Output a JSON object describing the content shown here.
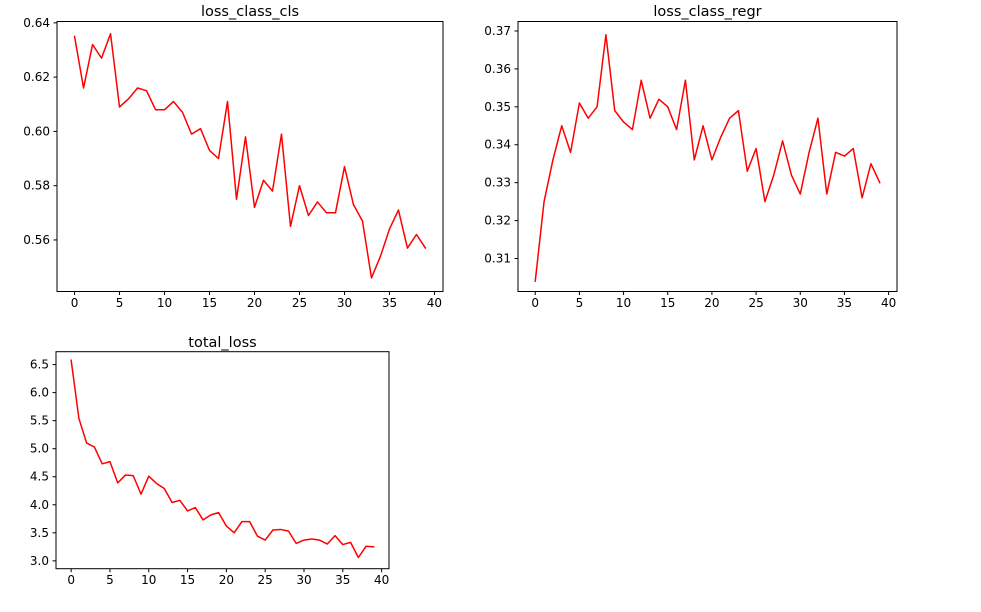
{
  "figure": {
    "background_color": "#ffffff",
    "text_color": "#000000",
    "frame_color": "#000000"
  },
  "chart_data": [
    {
      "type": "line",
      "title": "loss_class_cls",
      "series_name": "loss_class_cls",
      "series_color": "#ff0000",
      "x_start": 0,
      "x_step": 1,
      "values": [
        0.635,
        0.616,
        0.632,
        0.627,
        0.636,
        0.609,
        0.612,
        0.616,
        0.615,
        0.608,
        0.608,
        0.611,
        0.607,
        0.599,
        0.601,
        0.593,
        0.59,
        0.611,
        0.575,
        0.598,
        0.572,
        0.582,
        0.578,
        0.599,
        0.565,
        0.58,
        0.569,
        0.574,
        0.57,
        0.57,
        0.587,
        0.573,
        0.567,
        0.546,
        0.554,
        0.564,
        0.571,
        0.557,
        0.562,
        0.557
      ],
      "xlim": [
        -1.95,
        40.95
      ],
      "ylim": [
        0.541,
        0.6405
      ],
      "xtick_values": [
        0,
        5,
        10,
        15,
        20,
        25,
        30,
        35,
        40
      ],
      "xtick_labels": [
        "0",
        "5",
        "10",
        "15",
        "20",
        "25",
        "30",
        "35",
        "40"
      ],
      "ytick_values": [
        0.56,
        0.58,
        0.6,
        0.62,
        0.64
      ],
      "ytick_labels": [
        "0.56",
        "0.58",
        "0.60",
        "0.62",
        "0.64"
      ],
      "xlabel": "",
      "ylabel": "",
      "grid": false,
      "legend": null
    },
    {
      "type": "line",
      "title": "loss_class_regr",
      "series_name": "loss_class_regr",
      "series_color": "#ff0000",
      "x_start": 0,
      "x_step": 1,
      "values": [
        0.304,
        0.325,
        0.336,
        0.345,
        0.338,
        0.351,
        0.347,
        0.35,
        0.369,
        0.349,
        0.346,
        0.344,
        0.357,
        0.347,
        0.352,
        0.35,
        0.344,
        0.357,
        0.336,
        0.345,
        0.336,
        0.342,
        0.347,
        0.349,
        0.333,
        0.339,
        0.325,
        0.332,
        0.341,
        0.332,
        0.327,
        0.338,
        0.347,
        0.327,
        0.338,
        0.337,
        0.339,
        0.326,
        0.335,
        0.33
      ],
      "xlim": [
        -1.95,
        40.95
      ],
      "ylim": [
        0.3013,
        0.3725
      ],
      "xtick_values": [
        0,
        5,
        10,
        15,
        20,
        25,
        30,
        35,
        40
      ],
      "xtick_labels": [
        "0",
        "5",
        "10",
        "15",
        "20",
        "25",
        "30",
        "35",
        "40"
      ],
      "ytick_values": [
        0.31,
        0.32,
        0.33,
        0.34,
        0.35,
        0.36,
        0.37
      ],
      "ytick_labels": [
        "0.31",
        "0.32",
        "0.33",
        "0.34",
        "0.35",
        "0.36",
        "0.37"
      ],
      "xlabel": "",
      "ylabel": "",
      "grid": false,
      "legend": null
    },
    {
      "type": "line",
      "title": "total_loss",
      "series_name": "total_loss",
      "series_color": "#ff0000",
      "x_start": 0,
      "x_step": 1,
      "values": [
        6.58,
        5.54,
        5.1,
        5.03,
        4.73,
        4.77,
        4.39,
        4.53,
        4.52,
        4.19,
        4.51,
        4.38,
        4.29,
        4.04,
        4.08,
        3.89,
        3.95,
        3.73,
        3.82,
        3.86,
        3.62,
        3.5,
        3.7,
        3.7,
        3.44,
        3.37,
        3.55,
        3.56,
        3.53,
        3.31,
        3.37,
        3.39,
        3.37,
        3.3,
        3.45,
        3.29,
        3.33,
        3.06,
        3.26,
        3.25
      ],
      "xlim": [
        -1.95,
        40.95
      ],
      "ylim": [
        2.86,
        6.73
      ],
      "xtick_values": [
        0,
        5,
        10,
        15,
        20,
        25,
        30,
        35,
        40
      ],
      "xtick_labels": [
        "0",
        "5",
        "10",
        "15",
        "20",
        "25",
        "30",
        "35",
        "40"
      ],
      "ytick_values": [
        3.0,
        3.5,
        4.0,
        4.5,
        5.0,
        5.5,
        6.0,
        6.5
      ],
      "ytick_labels": [
        "3.0",
        "3.5",
        "4.0",
        "4.5",
        "5.0",
        "5.5",
        "6.0",
        "6.5"
      ],
      "xlabel": "",
      "ylabel": "",
      "grid": false,
      "legend": null
    }
  ]
}
